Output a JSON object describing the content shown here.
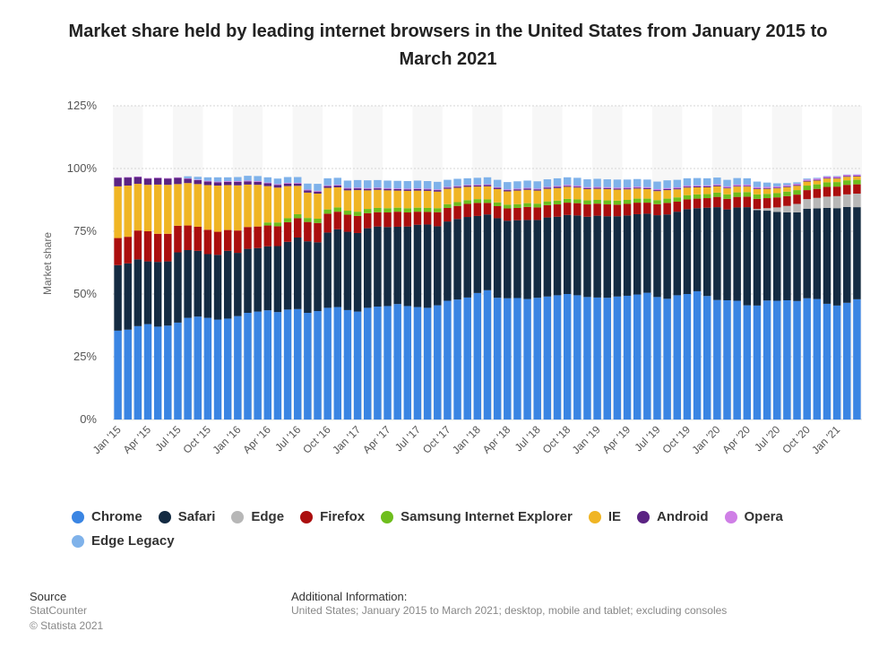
{
  "title": "Market share held by leading internet browsers in the United States from January 2015 to March 2021",
  "footer": {
    "source_heading": "Source",
    "source_name": "StatCounter",
    "copyright": "© Statista 2021",
    "info_heading": "Additional Information:",
    "info_text": "United States; January 2015 to March 2021; desktop, mobile and tablet; excluding consoles"
  },
  "chart_data": {
    "type": "bar",
    "stacked": true,
    "ylabel": "Market share",
    "ylim": [
      0,
      125
    ],
    "yticks": [
      0,
      25,
      50,
      75,
      100,
      125
    ],
    "ytick_labels": [
      "0%",
      "25%",
      "50%",
      "75%",
      "100%",
      "125%"
    ],
    "grid": true,
    "legend_position": "bottom",
    "x_tick_labels": [
      "Jan '15",
      "Apr '15",
      "Jul '15",
      "Oct '15",
      "Jan '16",
      "Apr '16",
      "Jul '16",
      "Oct '16",
      "Jan '17",
      "Apr '17",
      "Jul '17",
      "Oct '17",
      "Jan '18",
      "Apr '18",
      "Jul '18",
      "Oct '18",
      "Jan '19",
      "Apr '19",
      "Jul '19",
      "Oct '19",
      "Jan '20",
      "Apr '20",
      "Jul '20",
      "Oct '20",
      "Jan '21"
    ],
    "categories": [
      "Jan '15",
      "Feb '15",
      "Mar '15",
      "Apr '15",
      "May '15",
      "Jun '15",
      "Jul '15",
      "Aug '15",
      "Sep '15",
      "Oct '15",
      "Nov '15",
      "Dec '15",
      "Jan '16",
      "Feb '16",
      "Mar '16",
      "Apr '16",
      "May '16",
      "Jun '16",
      "Jul '16",
      "Aug '16",
      "Sep '16",
      "Oct '16",
      "Nov '16",
      "Dec '16",
      "Jan '17",
      "Feb '17",
      "Mar '17",
      "Apr '17",
      "May '17",
      "Jun '17",
      "Jul '17",
      "Aug '17",
      "Sep '17",
      "Oct '17",
      "Nov '17",
      "Dec '17",
      "Jan '18",
      "Feb '18",
      "Mar '18",
      "Apr '18",
      "May '18",
      "Jun '18",
      "Jul '18",
      "Aug '18",
      "Sep '18",
      "Oct '18",
      "Nov '18",
      "Dec '18",
      "Jan '19",
      "Feb '19",
      "Mar '19",
      "Apr '19",
      "May '19",
      "Jun '19",
      "Jul '19",
      "Aug '19",
      "Sep '19",
      "Oct '19",
      "Nov '19",
      "Dec '19",
      "Jan '20",
      "Feb '20",
      "Mar '20",
      "Apr '20",
      "May '20",
      "Jun '20",
      "Jul '20",
      "Aug '20",
      "Sep '20",
      "Oct '20",
      "Nov '20",
      "Dec '20",
      "Jan '21",
      "Feb '21",
      "Mar '21"
    ],
    "series": [
      {
        "name": "Chrome",
        "color": "#3a85e3",
        "values": [
          35.4,
          35.8,
          37.2,
          38.0,
          37.0,
          37.4,
          38.6,
          40.5,
          41.0,
          40.5,
          39.8,
          40.2,
          41.2,
          42.5,
          43.0,
          43.5,
          42.8,
          43.8,
          44.0,
          42.5,
          43.2,
          44.5,
          44.8,
          43.6,
          43.0,
          44.5,
          45.0,
          45.2,
          46.0,
          45.2,
          44.8,
          44.5,
          45.5,
          47.3,
          47.8,
          48.6,
          50.4,
          51.5,
          48.5,
          48.3,
          48.4,
          48.0,
          48.5,
          49.0,
          49.5,
          50.0,
          49.5,
          48.8,
          48.6,
          48.5,
          49.0,
          49.3,
          49.8,
          50.5,
          48.8,
          48.1,
          49.5,
          50.0,
          51.1,
          49.2,
          47.6,
          47.5,
          47.3,
          45.5,
          45.4,
          47.4,
          47.3,
          47.5,
          47.2,
          48.3,
          48.0,
          46.1,
          45.4,
          46.5,
          47.9
        ]
      },
      {
        "name": "Safari",
        "color": "#142b42",
        "values": [
          26.1,
          26.4,
          26.6,
          25.0,
          25.8,
          25.6,
          28.0,
          27.0,
          26.2,
          25.4,
          25.8,
          27.0,
          25.2,
          25.5,
          25.3,
          25.5,
          26.3,
          27.0,
          28.5,
          28.5,
          27.4,
          30.0,
          31.0,
          31.2,
          31.3,
          31.7,
          31.9,
          31.5,
          30.8,
          31.7,
          32.8,
          33.2,
          31.5,
          31.6,
          32.1,
          32.1,
          30.7,
          30.2,
          31.7,
          30.9,
          31.0,
          31.5,
          31.0,
          31.5,
          31.3,
          31.5,
          31.8,
          32.0,
          32.6,
          32.5,
          32.0,
          32.0,
          32.0,
          31.5,
          32.6,
          33.6,
          33.3,
          33.8,
          33.1,
          35.2,
          37.0,
          36.2,
          37.2,
          39.1,
          38.0,
          35.8,
          35.4,
          35.0,
          35.3,
          35.7,
          36.1,
          38.2,
          38.8,
          38.2,
          36.7
        ]
      },
      {
        "name": "Edge",
        "color": "#b7b7b7",
        "values": [
          0,
          0,
          0,
          0,
          0,
          0,
          0,
          0,
          0,
          0,
          0,
          0,
          0,
          0,
          0,
          0,
          0,
          0,
          0,
          0,
          0,
          0,
          0,
          0,
          0,
          0,
          0,
          0,
          0,
          0,
          0,
          0,
          0,
          0,
          0,
          0,
          0,
          0,
          0,
          0,
          0,
          0,
          0,
          0,
          0,
          0,
          0,
          0,
          0,
          0,
          0,
          0,
          0,
          0,
          0,
          0,
          0,
          0,
          0,
          0,
          0,
          0,
          0,
          0,
          0.5,
          1.0,
          1.8,
          2.6,
          3.4,
          3.8,
          4.2,
          4.5,
          4.8,
          5.0,
          5.4
        ]
      },
      {
        "name": "Firefox",
        "color": "#ab0e0e",
        "values": [
          10.8,
          10.6,
          11.5,
          12.0,
          11.2,
          11.0,
          10.6,
          9.8,
          9.6,
          9.7,
          9.2,
          8.3,
          8.9,
          8.7,
          8.6,
          8.3,
          7.9,
          7.8,
          7.7,
          7.7,
          7.7,
          7.5,
          7.0,
          6.8,
          6.8,
          6.0,
          5.7,
          5.8,
          6.0,
          5.6,
          5.2,
          5.0,
          5.6,
          5.4,
          5.2,
          5.2,
          5.2,
          4.6,
          4.8,
          4.9,
          4.9,
          5.2,
          5.0,
          4.9,
          4.9,
          4.9,
          4.9,
          4.9,
          4.8,
          4.7,
          4.6,
          4.6,
          4.6,
          4.4,
          4.4,
          4.6,
          4.0,
          3.9,
          3.8,
          3.8,
          4.1,
          4.2,
          4.2,
          4.2,
          4.0,
          4.0,
          4.0,
          3.9,
          3.7,
          3.6,
          3.6,
          3.9,
          3.8,
          3.8,
          3.7
        ]
      },
      {
        "name": "Samsung Internet Explorer",
        "color": "#6ebe1d",
        "values": [
          0,
          0,
          0,
          0,
          0,
          0,
          0,
          0,
          0,
          0,
          0,
          0,
          0,
          0,
          0,
          1.2,
          1.5,
          1.6,
          1.6,
          1.6,
          1.7,
          1.7,
          1.7,
          1.6,
          1.7,
          1.7,
          1.7,
          1.7,
          1.6,
          1.7,
          1.6,
          1.6,
          1.6,
          1.5,
          1.5,
          1.5,
          1.5,
          1.4,
          1.5,
          1.5,
          1.5,
          1.5,
          1.5,
          1.5,
          1.5,
          1.5,
          1.5,
          1.6,
          1.5,
          1.6,
          1.6,
          1.6,
          1.6,
          1.6,
          1.6,
          1.7,
          1.7,
          1.7,
          1.7,
          1.6,
          1.7,
          1.8,
          1.8,
          1.8,
          1.8,
          1.7,
          1.7,
          1.8,
          1.8,
          1.8,
          1.8,
          1.8,
          1.8,
          1.8,
          1.8
        ]
      },
      {
        "name": "IE",
        "color": "#f0b524",
        "values": [
          20.6,
          20.4,
          18.6,
          18.5,
          19.6,
          19.5,
          16.6,
          16.9,
          17.0,
          17.8,
          18.4,
          17.9,
          18.0,
          16.9,
          16.6,
          14.5,
          13.9,
          12.8,
          11.3,
          10.1,
          10.0,
          8.6,
          8.0,
          8.1,
          8.6,
          7.4,
          7.2,
          7.1,
          6.8,
          6.9,
          6.8,
          6.8,
          6.6,
          6.1,
          5.7,
          5.3,
          5.0,
          5.2,
          5.3,
          5.3,
          5.4,
          5.3,
          5.2,
          5.0,
          5.0,
          4.8,
          4.7,
          4.5,
          4.4,
          4.5,
          4.4,
          4.2,
          4.0,
          3.8,
          3.6,
          3.4,
          3.2,
          3.0,
          2.8,
          2.7,
          2.5,
          2.4,
          2.3,
          2.2,
          2.1,
          2.0,
          1.9,
          1.8,
          1.7,
          1.6,
          1.5,
          1.5,
          1.4,
          1.4,
          1.3
        ]
      },
      {
        "name": "Android",
        "color": "#5b2383",
        "values": [
          3.4,
          3.2,
          2.7,
          2.5,
          2.6,
          2.5,
          2.5,
          1.7,
          1.6,
          1.4,
          1.3,
          1.3,
          1.4,
          1.3,
          1.2,
          1.1,
          1.1,
          1.0,
          0.9,
          0.9,
          0.8,
          0.7,
          0.7,
          0.7,
          0.7,
          0.6,
          0.6,
          0.6,
          0.6,
          0.6,
          0.6,
          0.6,
          0.6,
          0.5,
          0.5,
          0.5,
          0.5,
          0.5,
          0.5,
          0.5,
          0.5,
          0.5,
          0.5,
          0.5,
          0.5,
          0.4,
          0.4,
          0.4,
          0.4,
          0.4,
          0.4,
          0.4,
          0.4,
          0.4,
          0.4,
          0.4,
          0.4,
          0.4,
          0.4,
          0.4,
          0.4,
          0.3,
          0.3,
          0.3,
          0.3,
          0.3,
          0.3,
          0.3,
          0.3,
          0.3,
          0.3,
          0.3,
          0.3,
          0.3,
          0.3
        ]
      },
      {
        "name": "Opera",
        "color": "#cf7fe6",
        "values": [
          0.2,
          0.2,
          0.2,
          0.2,
          0.2,
          0.2,
          0.2,
          0.2,
          0.2,
          0.3,
          0.3,
          0.3,
          0.3,
          0.3,
          0.3,
          0.3,
          0.3,
          0.3,
          0.3,
          0.3,
          0.3,
          0.3,
          0.3,
          0.3,
          0.3,
          0.3,
          0.3,
          0.3,
          0.3,
          0.3,
          0.3,
          0.3,
          0.3,
          0.3,
          0.3,
          0.3,
          0.3,
          0.3,
          0.3,
          0.3,
          0.3,
          0.3,
          0.3,
          0.3,
          0.4,
          0.4,
          0.4,
          0.4,
          0.4,
          0.4,
          0.4,
          0.4,
          0.4,
          0.4,
          0.4,
          0.4,
          0.4,
          0.4,
          0.4,
          0.4,
          0.4,
          0.5,
          0.5,
          0.5,
          0.5,
          0.5,
          0.5,
          0.5,
          0.5,
          0.5,
          0.5,
          0.5,
          0.5,
          0.5,
          0.5
        ]
      },
      {
        "name": "Edge Legacy",
        "color": "#7fb2ea",
        "values": [
          0,
          0,
          0,
          0,
          0,
          0,
          0,
          0.8,
          1.1,
          1.4,
          1.7,
          1.5,
          1.6,
          1.9,
          2.0,
          2.1,
          2.2,
          2.3,
          2.3,
          2.4,
          2.8,
          2.8,
          2.8,
          2.9,
          3.0,
          3.1,
          3.0,
          3.0,
          3.0,
          3.0,
          3.1,
          3.0,
          3.0,
          2.8,
          2.8,
          2.6,
          2.7,
          2.8,
          2.9,
          2.9,
          2.9,
          2.9,
          2.9,
          3.0,
          3.0,
          3.0,
          3.1,
          3.1,
          3.2,
          3.1,
          3.2,
          3.1,
          3.0,
          3.0,
          3.0,
          3.1,
          3.0,
          2.9,
          2.9,
          2.8,
          2.7,
          2.6,
          2.6,
          2.5,
          2.2,
          1.7,
          1.2,
          0.8,
          0.6,
          0.4,
          0.3,
          0.2,
          0.2,
          0.1,
          0.1
        ]
      }
    ]
  }
}
